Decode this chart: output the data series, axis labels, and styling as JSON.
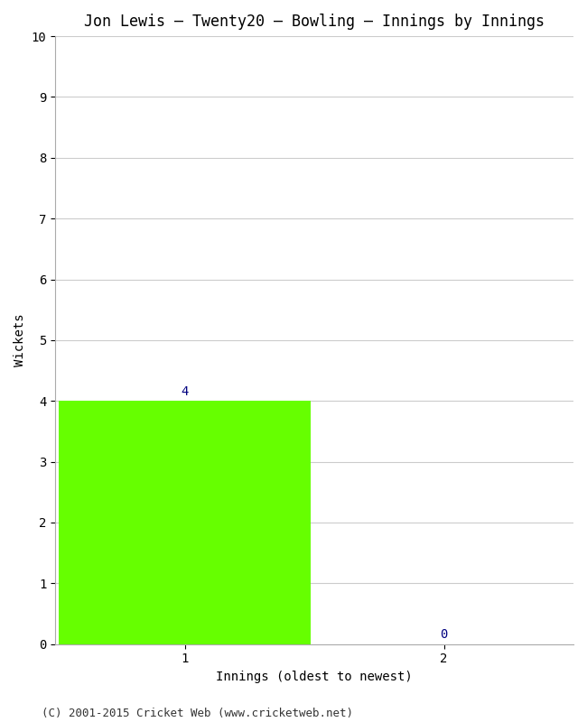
{
  "title": "Jon Lewis – Twenty20 – Bowling – Innings by Innings",
  "xlabel": "Innings (oldest to newest)",
  "ylabel": "Wickets",
  "categories": [
    1,
    2
  ],
  "values": [
    4,
    0
  ],
  "bar_color": "#66ff00",
  "value_labels": [
    "4",
    "0"
  ],
  "value_label_color": "#000080",
  "ylim": [
    0,
    10
  ],
  "yticks": [
    0,
    1,
    2,
    3,
    4,
    5,
    6,
    7,
    8,
    9,
    10
  ],
  "xticks": [
    1,
    2
  ],
  "xlim": [
    0.5,
    2.5
  ],
  "background_color": "#ffffff",
  "grid_color": "#cccccc",
  "footnote": "(C) 2001-2015 Cricket Web (www.cricketweb.net)",
  "title_fontsize": 12,
  "label_fontsize": 10,
  "tick_fontsize": 10,
  "footnote_fontsize": 9,
  "bar_width": 0.97
}
